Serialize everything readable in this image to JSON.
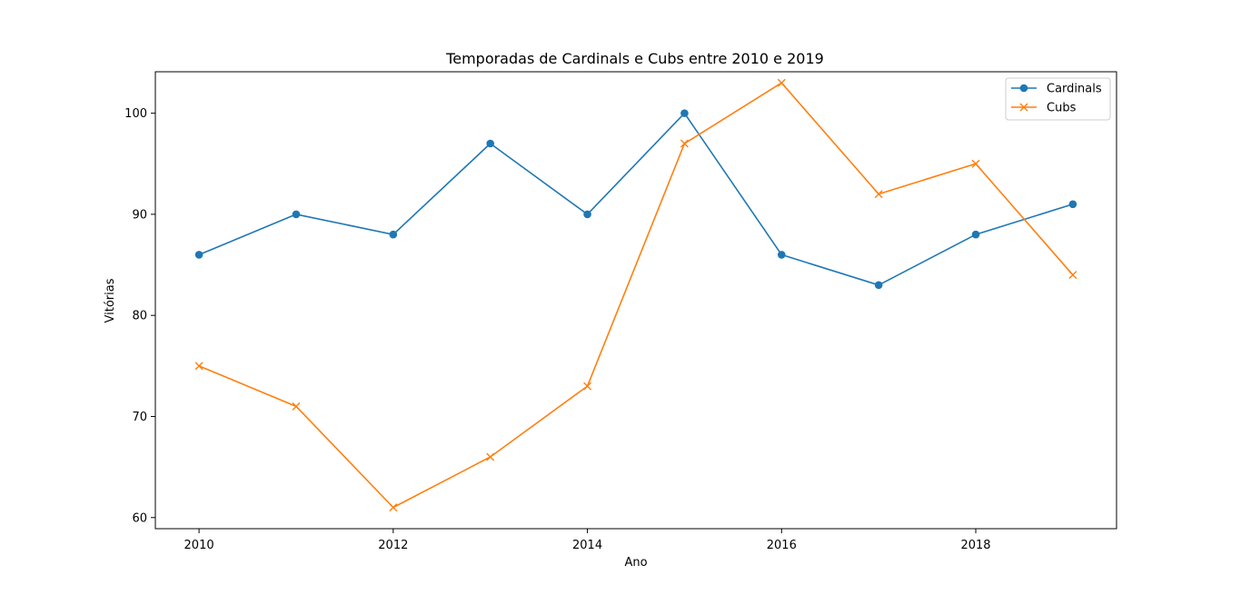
{
  "chart_data": {
    "type": "line",
    "title": "Temporadas de Cardinals e Cubs entre 2010 e 2019",
    "xlabel": "Ano",
    "ylabel": "Vitórias",
    "x": [
      2010,
      2011,
      2012,
      2013,
      2014,
      2015,
      2016,
      2017,
      2018,
      2019
    ],
    "xlim": [
      2009.55,
      2019.45
    ],
    "ylim": [
      58.9,
      104.1
    ],
    "xticks": [
      2010,
      2012,
      2014,
      2016,
      2018
    ],
    "yticks": [
      60,
      70,
      80,
      90,
      100
    ],
    "grid": false,
    "legend_position": "top-right",
    "series": [
      {
        "name": "Cardinals",
        "color": "#1f77b4",
        "marker": "circle",
        "values": [
          86,
          90,
          88,
          97,
          90,
          100,
          86,
          83,
          88,
          91
        ]
      },
      {
        "name": "Cubs",
        "color": "#ff7f0e",
        "marker": "x",
        "values": [
          75,
          71,
          61,
          66,
          73,
          97,
          103,
          92,
          95,
          84
        ]
      }
    ]
  }
}
